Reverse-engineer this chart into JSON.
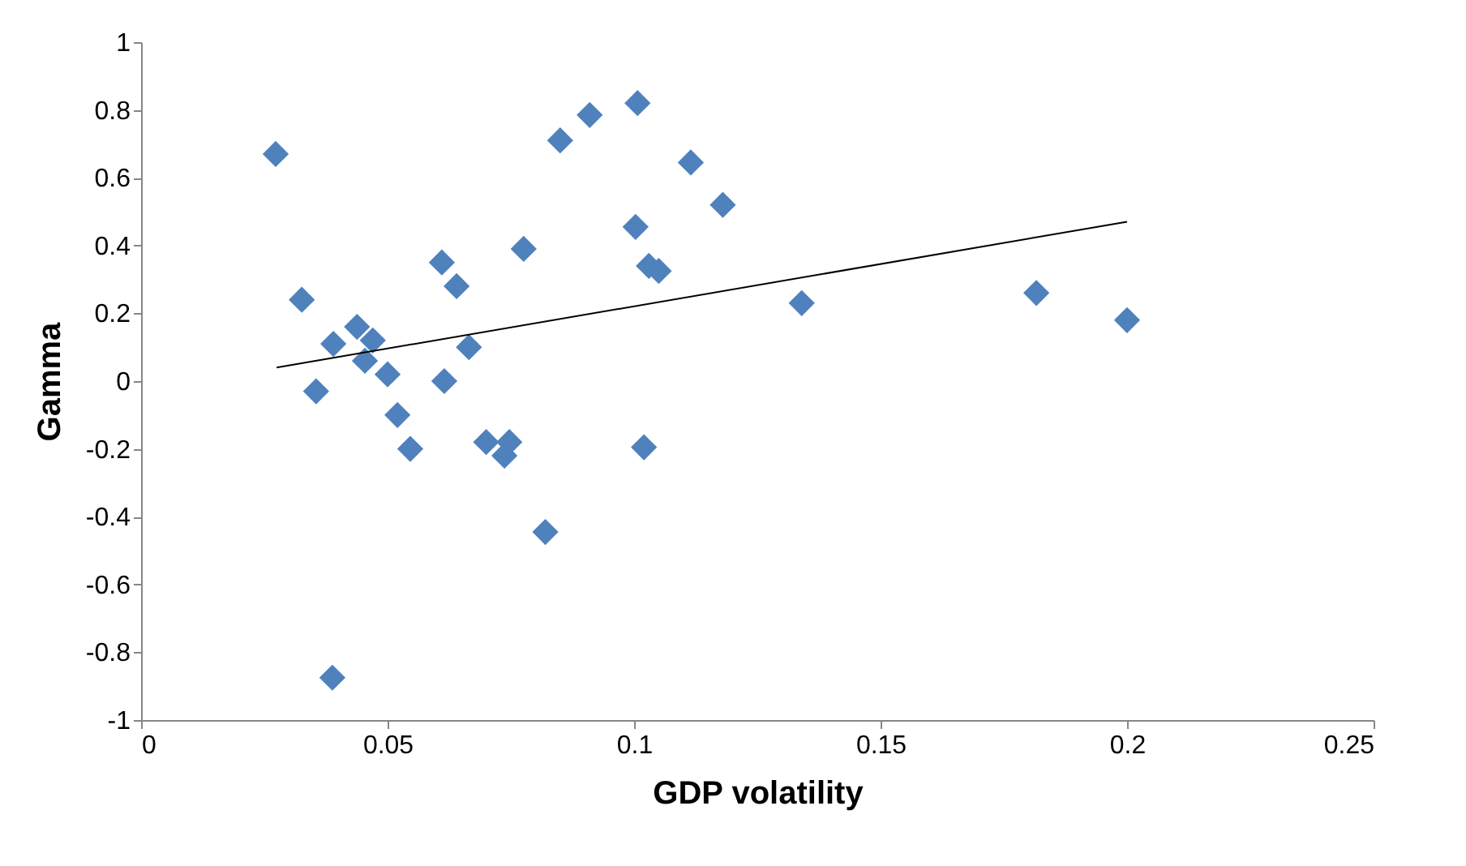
{
  "chart_data": {
    "type": "scatter",
    "xlabel": "GDP volatility",
    "ylabel": "Gamma",
    "xlim": [
      0,
      0.25
    ],
    "xticks": [
      0,
      0.05,
      0.1,
      0.15,
      0.2,
      0.25
    ],
    "ylim": [
      -1,
      1
    ],
    "yticks": [
      -1,
      -0.8,
      -0.6,
      -0.4,
      -0.2,
      0,
      0.2,
      0.4,
      0.6,
      0.8,
      1
    ],
    "grid": false,
    "marker": "diamond",
    "series": [
      {
        "color": "#4f81bd",
        "x": [
          0.0273,
          0.0326,
          0.0355,
          0.039,
          0.0388,
          0.0438,
          0.0454,
          0.047,
          0.05,
          0.052,
          0.0546,
          0.061,
          0.0615,
          0.064,
          0.0665,
          0.07,
          0.0737,
          0.0747,
          0.0776,
          0.082,
          0.085,
          0.091,
          0.1007,
          0.1003,
          0.102,
          0.103,
          0.105,
          0.1115,
          0.118,
          0.134,
          0.1816,
          0.2
        ],
        "values": [
          0.67,
          0.24,
          -0.03,
          0.11,
          -0.875,
          0.16,
          0.06,
          0.12,
          0.02,
          -0.1,
          -0.2,
          0.35,
          0.0,
          0.28,
          0.1,
          -0.18,
          -0.22,
          -0.18,
          0.39,
          -0.445,
          0.71,
          0.785,
          0.82,
          0.455,
          -0.195,
          0.34,
          0.325,
          0.645,
          0.52,
          0.23,
          0.26,
          0.18
        ]
      },
      {
        "type": "line",
        "color": "#000000",
        "marker": "none",
        "line_style": "solid",
        "x": [
          0.0275,
          0.2
        ],
        "values": [
          0.04,
          0.47
        ]
      }
    ]
  }
}
